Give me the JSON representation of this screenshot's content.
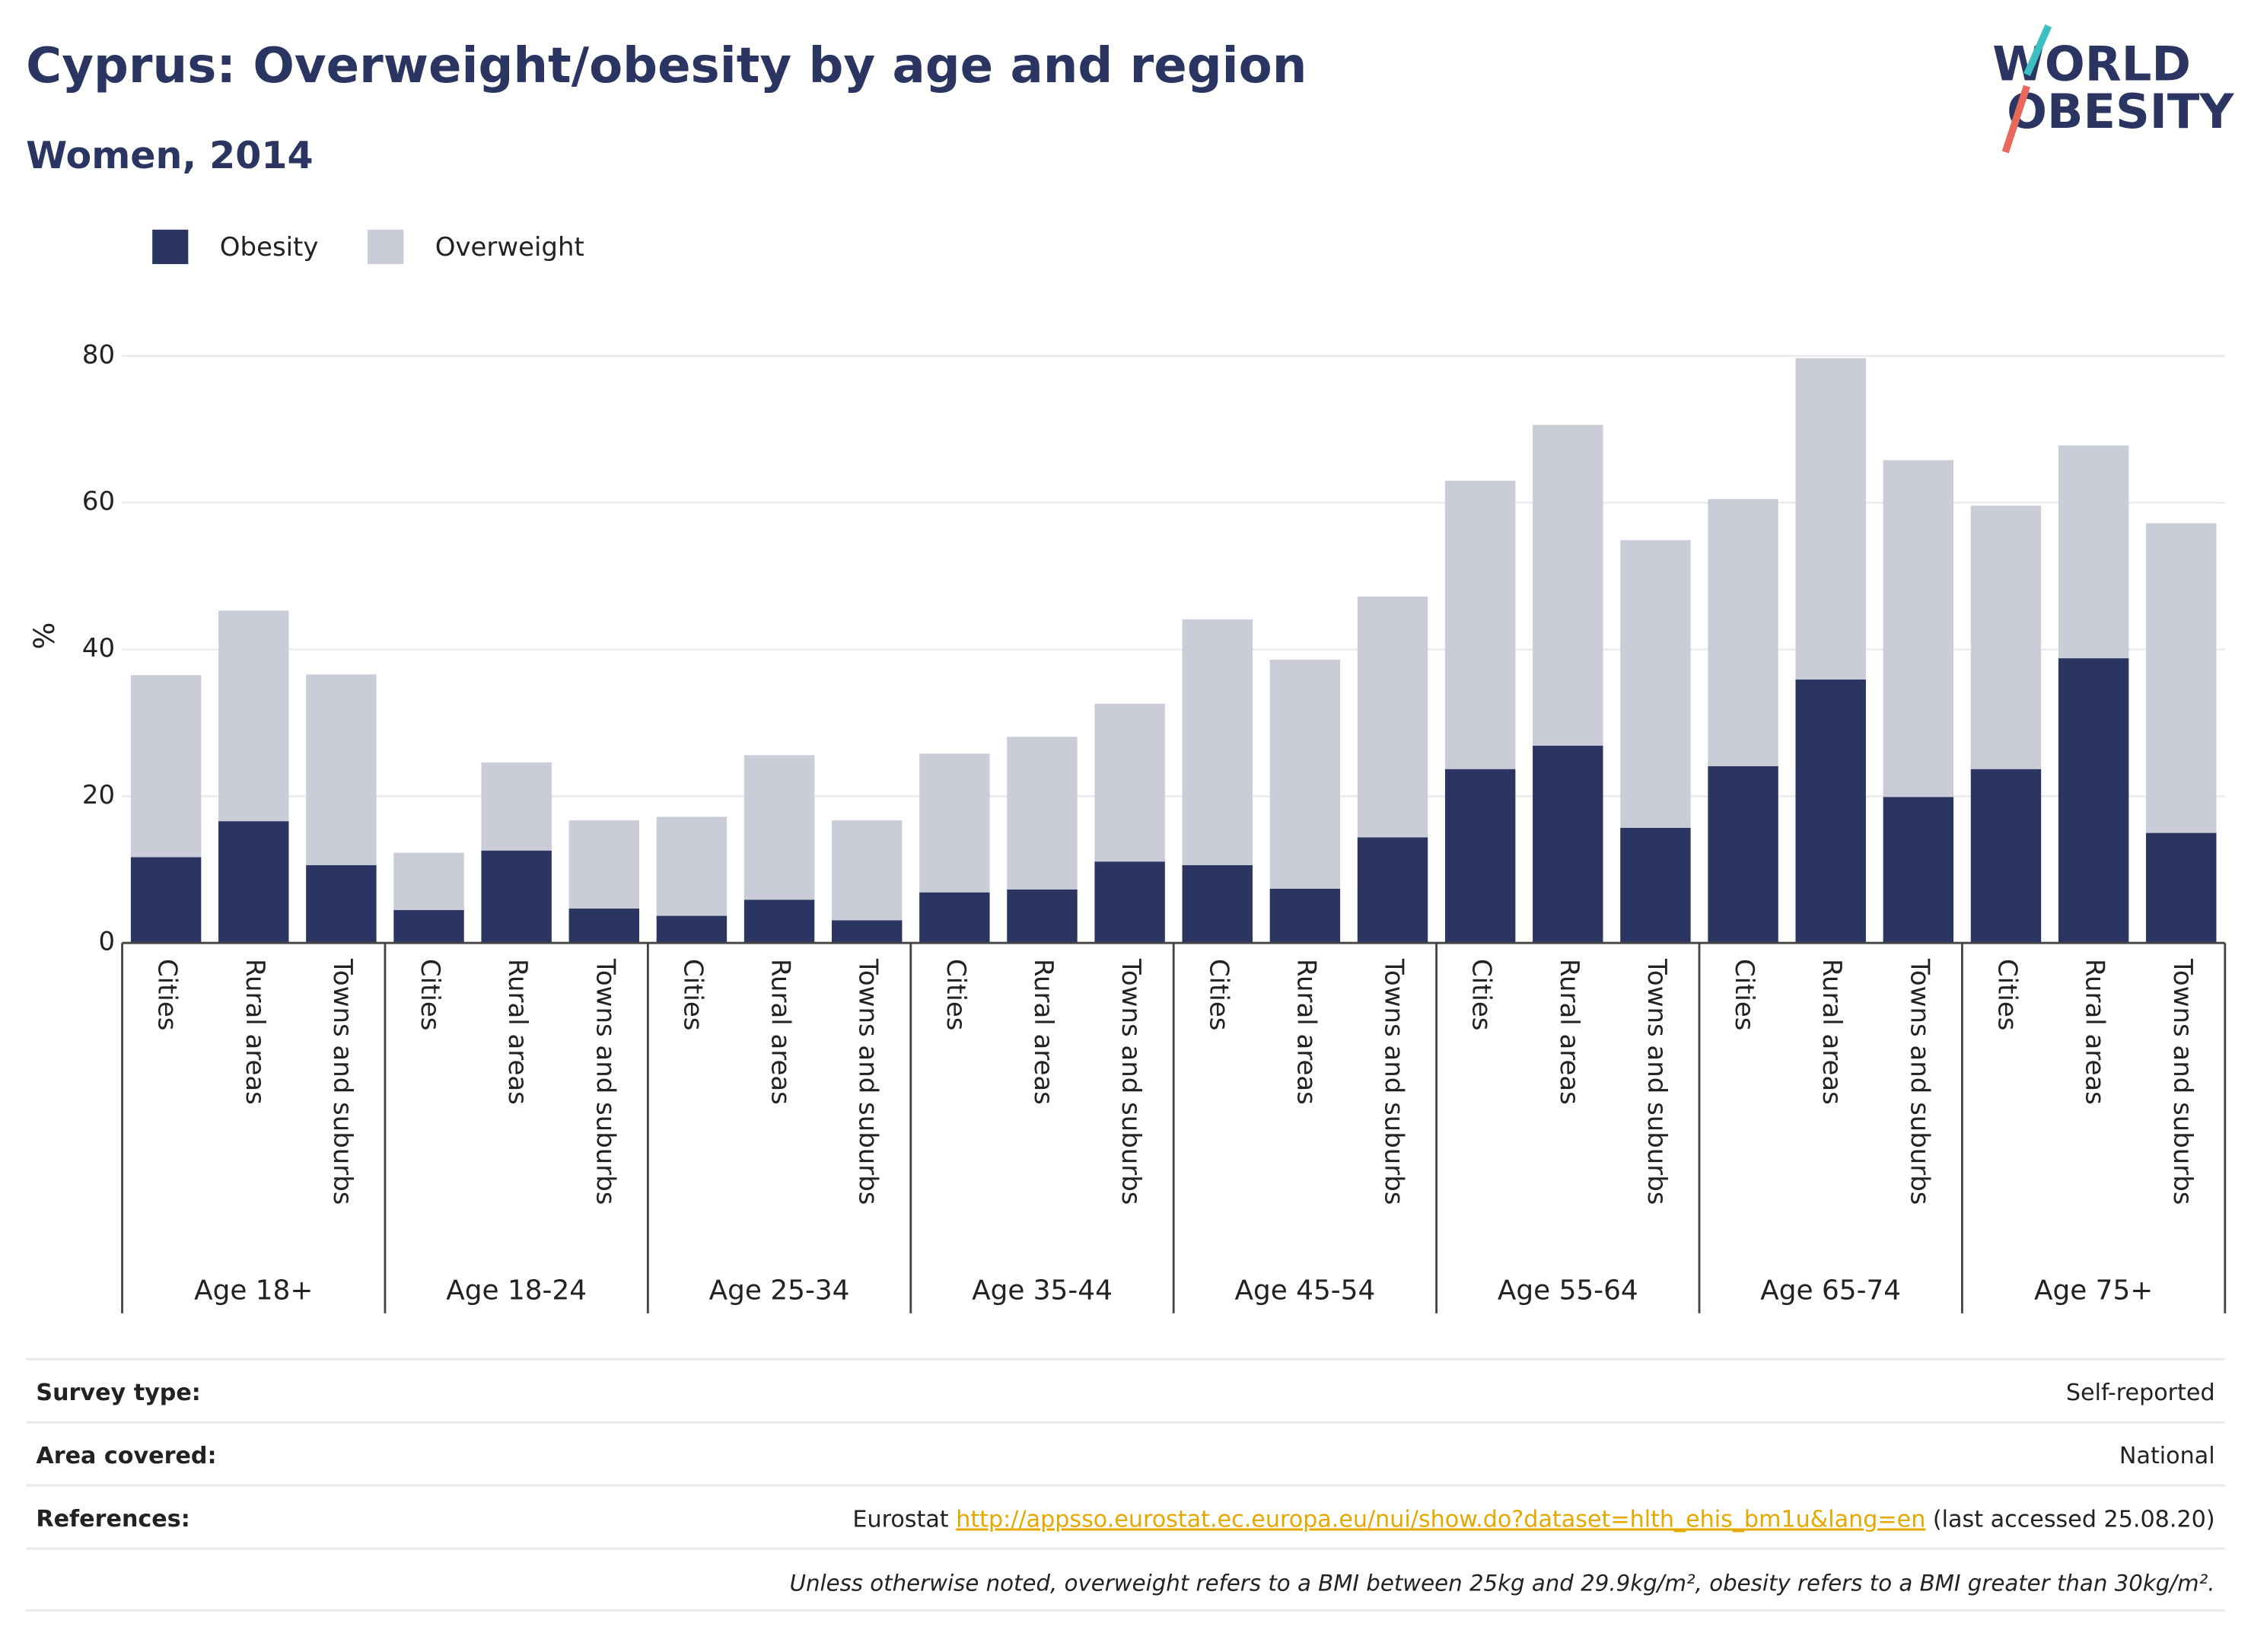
{
  "chart_data": {
    "type": "stacked-bar",
    "title": "Cyprus: Overweight/obesity by age and region",
    "subtitle": "Women, 2014",
    "y_label": "%",
    "groups": [
      "Age 18+",
      "Age 18-24",
      "Age 25-34",
      "Age 35-44",
      "Age 45-54",
      "Age 55-64",
      "Age 65-74",
      "Age 75+"
    ],
    "categories": [
      "Cities",
      "Rural areas",
      "Towns and suburbs",
      "Cities",
      "Rural areas",
      "Towns and suburbs",
      "Cities",
      "Rural areas",
      "Towns and suburbs",
      "Cities",
      "Rural areas",
      "Towns and suburbs",
      "Cities",
      "Rural areas",
      "Towns and suburbs",
      "Cities",
      "Rural areas",
      "Towns and suburbs",
      "Cities",
      "Rural areas",
      "Towns and suburbs",
      "Cities",
      "Rural areas",
      "Towns and suburbs"
    ],
    "series": [
      {
        "name": "Obesity",
        "color": "#2b3562",
        "values": [
          11.7,
          16.6,
          10.6,
          4.5,
          12.6,
          4.7,
          3.7,
          5.9,
          3.1,
          6.9,
          7.3,
          11.1,
          10.6,
          7.4,
          14.4,
          23.7,
          26.9,
          15.7,
          24.1,
          35.9,
          19.9,
          23.7,
          38.8,
          15.0
        ]
      },
      {
        "name": "Overweight",
        "color": "#caccd8",
        "values": [
          24.8,
          28.7,
          26.0,
          7.8,
          12.0,
          12.0,
          13.5,
          19.7,
          13.6,
          18.9,
          20.8,
          21.5,
          33.5,
          31.2,
          32.8,
          39.3,
          43.7,
          39.2,
          36.4,
          43.8,
          45.9,
          35.9,
          29.0,
          42.2
        ]
      }
    ],
    "ylim": [
      0,
      80
    ],
    "yticks": [
      0,
      20,
      40,
      60,
      80
    ],
    "grid": true,
    "legend": "top-left"
  },
  "logo": [
    "WORLD",
    "OBESITY"
  ],
  "footer": {
    "rows": [
      {
        "label": "Survey type:",
        "value": "Self-reported"
      },
      {
        "label": "Area covered:",
        "value": "National"
      }
    ],
    "references": {
      "label": "References:",
      "source": "Eurostat",
      "link": "http://appsso.eurostat.ec.europa.eu/nui/show.do?dataset=hlth_ehis_bm1u&lang=en",
      "accessed": "(last accessed 25.08.20)"
    },
    "note": "Unless otherwise noted, overweight refers to a BMI between 25kg and 29.9kg/m², obesity refers to a BMI greater than 30kg/m²."
  }
}
